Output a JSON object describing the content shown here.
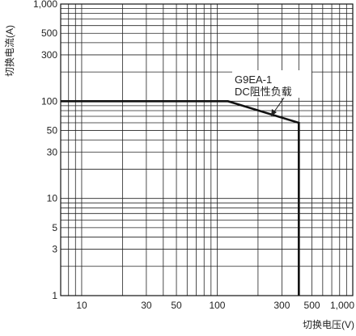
{
  "chart_data": {
    "type": "line",
    "title": "",
    "xlabel": "切换电压(V)",
    "ylabel": "切换电流(A)",
    "x_scale": "log",
    "y_scale": "log",
    "xlim": [
      7,
      1000
    ],
    "ylim": [
      1,
      1000
    ],
    "grid": true,
    "x_ticks": [
      {
        "value": 10,
        "label": "10"
      },
      {
        "value": 30,
        "label": "30"
      },
      {
        "value": 50,
        "label": "50"
      },
      {
        "value": 100,
        "label": "100"
      },
      {
        "value": 300,
        "label": "300"
      },
      {
        "value": 500,
        "label": "500"
      },
      {
        "value": 1000,
        "label": "1,000"
      }
    ],
    "y_ticks": [
      {
        "value": 1,
        "label": "1"
      },
      {
        "value": 3,
        "label": "3"
      },
      {
        "value": 5,
        "label": "5"
      },
      {
        "value": 10,
        "label": "10"
      },
      {
        "value": 30,
        "label": "30"
      },
      {
        "value": 50,
        "label": "50"
      },
      {
        "value": 100,
        "label": "100"
      },
      {
        "value": 300,
        "label": "300"
      },
      {
        "value": 500,
        "label": "500"
      },
      {
        "value": 1000,
        "label": "1,000"
      }
    ],
    "series": [
      {
        "name": "G9EA-1 DC阻性负载",
        "x": [
          7,
          120,
          400,
          400
        ],
        "y": [
          100,
          100,
          60,
          1
        ]
      }
    ],
    "annotation": {
      "lines": [
        "G9EA-1",
        "DC阻性负载"
      ],
      "arrow_to": {
        "x": 250,
        "y": 76
      }
    }
  }
}
